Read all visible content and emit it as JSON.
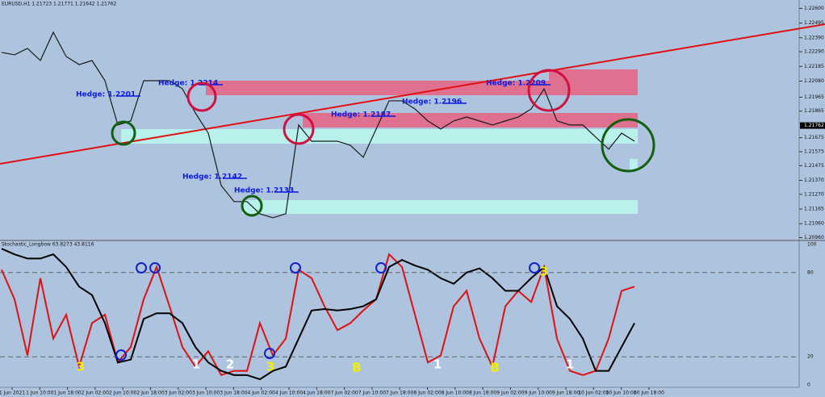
{
  "chart_data": [
    {
      "type": "line",
      "title": "EURUSD,H1  1.21723 1.21771 1.21642 1.21762",
      "color": "#1a1a1a",
      "values": [
        1.22285,
        1.22268,
        1.22314,
        1.22227,
        1.22429,
        1.22256,
        1.22198,
        1.22227,
        1.22083,
        1.21766,
        1.21795,
        1.22083,
        1.22083,
        1.22083,
        1.22025,
        1.21852,
        1.21708,
        1.21333,
        1.21218,
        1.21218,
        1.21131,
        1.21102,
        1.21131,
        1.21766,
        1.2165,
        1.2165,
        1.2165,
        1.21621,
        1.21535,
        1.21737,
        1.21939,
        1.21939,
        1.21881,
        1.21795,
        1.21737,
        1.21795,
        1.21823,
        1.21795,
        1.21766,
        1.21795,
        1.21823,
        1.21881,
        1.22025,
        1.21795,
        1.21766,
        1.21766,
        1.21679,
        1.21593,
        1.21708,
        1.2165
      ],
      "ylim": [
        1.2094,
        1.2266
      ],
      "yticks": [
        {
          "value": 1.226,
          "label": "1.22600"
        },
        {
          "value": 1.22495,
          "label": "1.22495"
        },
        {
          "value": 1.2239,
          "label": "1.22390"
        },
        {
          "value": 1.2229,
          "label": "1.22290"
        },
        {
          "value": 1.22185,
          "label": "1.22185"
        },
        {
          "value": 1.2208,
          "label": "1.22080"
        },
        {
          "value": 1.21965,
          "label": "1.21965"
        },
        {
          "value": 1.21865,
          "label": "1.21865"
        },
        {
          "value": 1.21675,
          "label": "1.21675"
        },
        {
          "value": 1.21575,
          "label": "1.21575"
        },
        {
          "value": 1.21475,
          "label": "1.21475"
        },
        {
          "value": 1.2137,
          "label": "1.21370"
        },
        {
          "value": 1.2127,
          "label": "1.21270"
        },
        {
          "value": 1.21165,
          "label": "1.21165"
        },
        {
          "value": 1.2106,
          "label": "1.21060"
        },
        {
          "value": 1.2096,
          "label": "1.20960"
        }
      ],
      "current_price": {
        "value": 1.21762,
        "label": "1.21762"
      },
      "annotations": [
        "Hedge: 1.2201",
        "Hedge: 1.2214",
        "Hedge: 1.2209",
        "Hedge: 1.2196",
        "Hedge: 1.2187",
        "Hedge: 1.2142",
        "Hedge: 1.2133"
      ]
    },
    {
      "type": "line",
      "title": "Stochastic_Longbow 63.8273 43.8116",
      "series": [
        {
          "color": "#e01010",
          "values": [
            82,
            61,
            21,
            76,
            33,
            50,
            13,
            44,
            50,
            16,
            27,
            61,
            84,
            56,
            27,
            13,
            24,
            7,
            10,
            10,
            44,
            21,
            33,
            82,
            76,
            56,
            39,
            44,
            53,
            61,
            93,
            84,
            50,
            16,
            21,
            56,
            67,
            33,
            13,
            56,
            67,
            59,
            84,
            33,
            10,
            7,
            10,
            33,
            67,
            70
          ]
        },
        {
          "color": "#000000",
          "values": [
            97,
            93,
            90,
            90,
            93,
            84,
            70,
            64,
            44,
            16,
            18,
            47,
            51,
            51,
            44,
            27,
            16,
            10,
            7,
            7,
            4,
            10,
            13,
            33,
            53,
            54,
            53,
            54,
            56,
            61,
            84,
            89,
            85,
            82,
            76,
            72,
            80,
            83,
            76,
            67,
            67,
            76,
            84,
            56,
            47,
            33,
            10,
            10,
            27,
            44
          ]
        }
      ],
      "ylim": [
        0,
        100
      ],
      "yticks": [
        0,
        20,
        80,
        100
      ],
      "signals": [
        {
          "text": "3",
          "color": "#f0f000"
        },
        {
          "text": "1",
          "color": "#ffffff"
        },
        {
          "text": "2",
          "color": "#ffffff"
        },
        {
          "text": "3",
          "color": "#f0f000"
        },
        {
          "text": "B",
          "color": "#f0f000"
        },
        {
          "text": "1",
          "color": "#ffffff"
        },
        {
          "text": "B",
          "color": "#f0f000"
        },
        {
          "text": "3",
          "color": "#f0f000"
        },
        {
          "text": "1",
          "color": "#ffffff"
        }
      ],
      "time_labels": [
        "1 Jun 2021",
        "1 Jun 10:00",
        "1 Jun 18:00",
        "2 Jun 02:00",
        "2 Jun 10:00",
        "2 Jun 18:00",
        "3 Jun 02:00",
        "3 Jun 10:00",
        "3 Jun 18:00",
        "4 Jun 02:00",
        "4 Jun 10:00",
        "4 Jun 18:00",
        "7 Jun 02:00",
        "7 Jun 10:00",
        "7 Jun 18:00",
        "8 Jun 02:00",
        "8 Jun 10:00",
        "8 Jun 18:00",
        "9 Jun 02:00",
        "9 Jun 10:00",
        "9 Jun 18:00",
        "10 Jun 02:00",
        "10 Jun 10:00",
        "10 Jun 18:00"
      ]
    }
  ]
}
